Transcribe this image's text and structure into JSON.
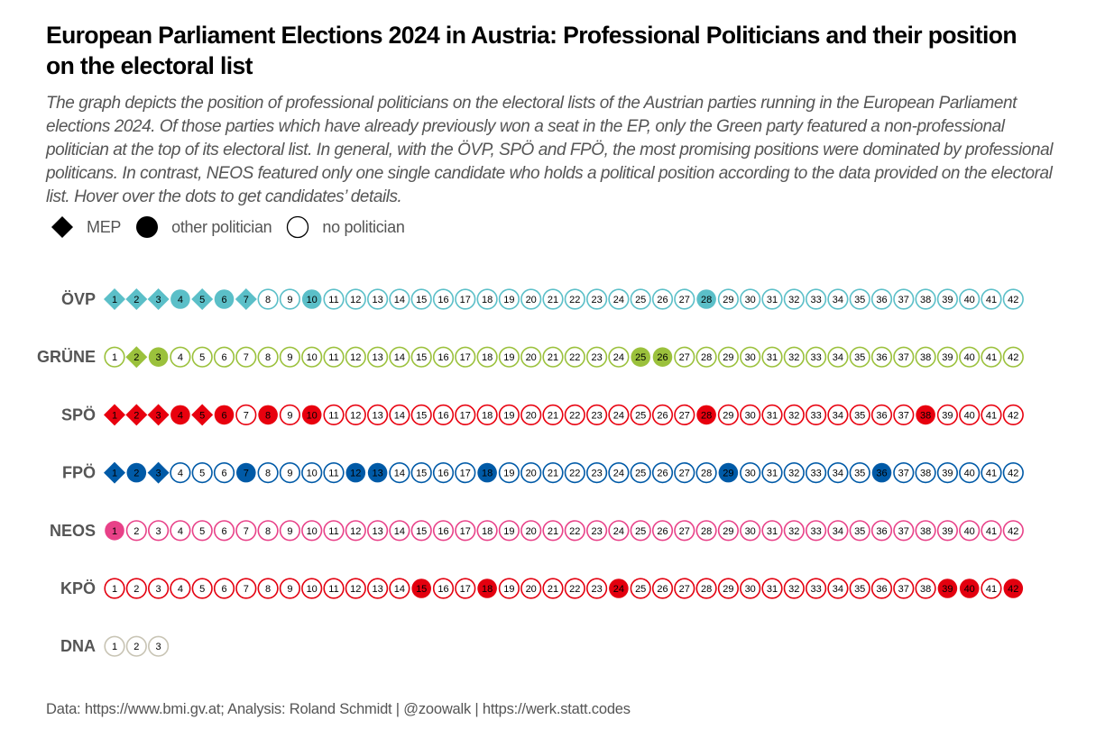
{
  "title": "European Parliament Elections 2024 in Austria: Professional Politicians and their position on the electoral list",
  "subtitle": "The graph depicts the position of professional politicians on the electoral lists of the Austrian parties running in the European Parliament elections 2024. Of those parties which have already previously won a seat in the EP,  only the Green party featured a non-professional politician at the top of its electoral list. In general, with the ÖVP,  SPÖ and FPÖ, the most promising positions were dominated by professional politicans. In contrast, NEOS featured only one single candidate who holds a political position according to the data provided on the electoral list. Hover over the dots to get candidates’ details.",
  "legend": {
    "mep": "MEP",
    "other": "other politician",
    "none": "no politician"
  },
  "caption": "Data: https://www.bmi.gv.at;  Analysis: Roland Schmidt | @zoowalk | https://werk.statt.codes",
  "chart_data": {
    "type": "dot-matrix",
    "categories_note": "",
    "parties": [
      {
        "name": "ÖVP",
        "color": "#5bbfc8",
        "count": 42,
        "mep": [
          1,
          2,
          3,
          5,
          7
        ],
        "other": [
          4,
          6,
          10,
          28
        ]
      },
      {
        "name": "GRÜNE",
        "color": "#9bc13c",
        "count": 42,
        "mep": [
          2
        ],
        "other": [
          3,
          25,
          26
        ]
      },
      {
        "name": "SPÖ",
        "color": "#e8000e",
        "count": 42,
        "mep": [
          1,
          2,
          3,
          5
        ],
        "other": [
          4,
          6,
          8,
          10,
          28,
          38
        ]
      },
      {
        "name": "FPÖ",
        "color": "#005aa7",
        "count": 42,
        "mep": [
          1,
          3
        ],
        "other": [
          2,
          7,
          12,
          13,
          18,
          29,
          36
        ]
      },
      {
        "name": "NEOS",
        "color": "#e84188",
        "count": 42,
        "mep": [],
        "other": [
          1
        ]
      },
      {
        "name": "KPÖ",
        "color": "#e3000f",
        "count": 42,
        "mep": [],
        "other": [
          15,
          18,
          24,
          39,
          40,
          42
        ]
      },
      {
        "name": "DNA",
        "color": "#c8c4b4",
        "count": 3,
        "mep": [],
        "other": []
      }
    ]
  }
}
